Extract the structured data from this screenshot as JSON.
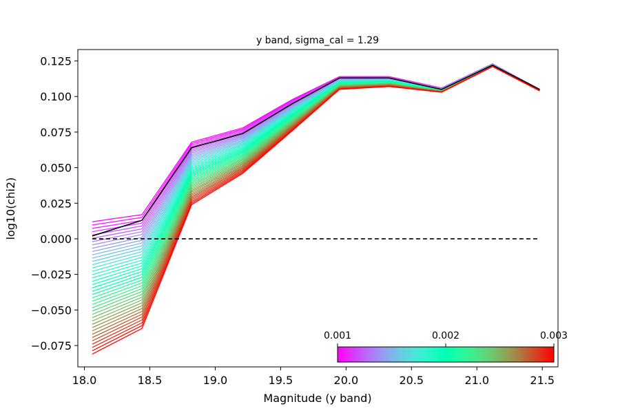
{
  "chart_data": {
    "type": "line",
    "title": "y band, sigma_cal = 1.29",
    "xlabel": "Magnitude (y band)",
    "ylabel": "log10(chi2)",
    "xlim": [
      17.95,
      21.62
    ],
    "ylim": [
      -0.09,
      0.133
    ],
    "x_ticks": [
      "18.0",
      "18.5",
      "19.0",
      "19.5",
      "20.0",
      "20.5",
      "21.0",
      "21.5"
    ],
    "y_ticks": [
      "−0.075",
      "−0.050",
      "−0.025",
      "0.000",
      "0.025",
      "0.050",
      "0.075",
      "0.100",
      "0.125"
    ],
    "grid": false,
    "x": [
      18.06,
      18.44,
      18.82,
      19.21,
      19.59,
      19.95,
      20.33,
      20.73,
      21.12,
      21.48
    ],
    "family": {
      "count": 41,
      "colormap": "rainbow",
      "param_range": [
        0.001,
        0.003
      ],
      "first": [
        0.012,
        0.017,
        0.068,
        0.078,
        0.098,
        0.114,
        0.114,
        0.106,
        0.123,
        0.105
      ],
      "last": [
        -0.081,
        -0.063,
        0.024,
        0.046,
        0.076,
        0.105,
        0.107,
        0.103,
        0.121,
        0.104
      ]
    },
    "series": [
      {
        "values": [
          0.002,
          0.013,
          0.064,
          0.074,
          0.095,
          0.113,
          0.113,
          0.105,
          0.122,
          0.105
        ],
        "color": "#000000",
        "style": "solid"
      },
      {
        "values": [
          0.0,
          0.0,
          0.0,
          0.0,
          0.0,
          0.0,
          0.0,
          0.0,
          0.0,
          0.0
        ],
        "color": "#000000",
        "style": "dashed"
      }
    ],
    "colorbar": {
      "orientation": "horizontal",
      "placement": "lower-right",
      "ticks": [
        "0.001",
        "0.002",
        "0.003"
      ],
      "min": 0.001,
      "max": 0.003
    }
  }
}
